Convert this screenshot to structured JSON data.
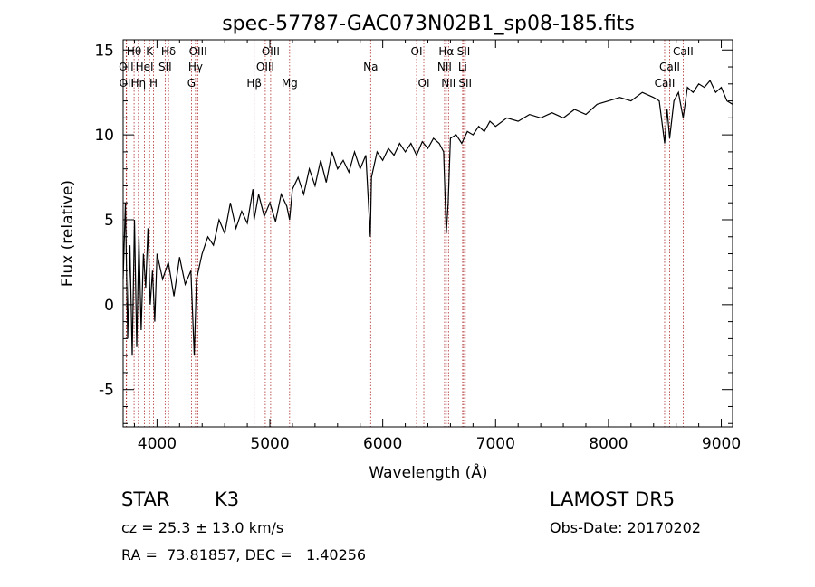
{
  "chart_data": {
    "type": "line",
    "title": "spec-57787-GAC073N02B1_sp08-185.fits",
    "xlabel": "Wavelength (Å)",
    "ylabel": "Flux (relative)",
    "xlim": [
      3700,
      9100
    ],
    "ylim": [
      -7.2,
      15.6
    ],
    "xticks": [
      4000,
      5000,
      6000,
      7000,
      8000,
      9000
    ],
    "yticks": [
      -5,
      0,
      5,
      10,
      15
    ],
    "grid": false,
    "legend": "none",
    "line_color": "#000000",
    "marker_color": "#b03030",
    "series": [
      {
        "x": [
          3700,
          3720,
          3740,
          3760,
          3780,
          3800,
          3820,
          3840,
          3860,
          3880,
          3900,
          3920,
          3940,
          3960,
          3980,
          4000,
          4050,
          4100,
          4150,
          4200,
          4250,
          4300,
          4330,
          4350,
          4400,
          4450,
          4500,
          4550,
          4600,
          4650,
          4700,
          4750,
          4800,
          4850,
          4860,
          4900,
          4950,
          5000,
          5050,
          5100,
          5150,
          5175,
          5200,
          5250,
          5300,
          5350,
          5400,
          5450,
          5500,
          5550,
          5600,
          5650,
          5700,
          5750,
          5800,
          5850,
          5890,
          5900,
          5950,
          6000,
          6050,
          6100,
          6150,
          6200,
          6250,
          6300,
          6350,
          6400,
          6450,
          6500,
          6540,
          6563,
          6580,
          6600,
          6650,
          6700,
          6750,
          6800,
          6850,
          6900,
          6950,
          7000,
          7100,
          7200,
          7300,
          7400,
          7500,
          7600,
          7700,
          7800,
          7900,
          8000,
          8100,
          8200,
          8300,
          8400,
          8450,
          8498,
          8520,
          8542,
          8580,
          8620,
          8662,
          8700,
          8750,
          8800,
          8850,
          8900,
          8950,
          9000,
          9050,
          9100
        ],
        "y": [
          1.5,
          6.0,
          -2.0,
          3.5,
          -3.0,
          5.0,
          -2.5,
          4.0,
          -1.5,
          3.0,
          1.0,
          4.5,
          0.0,
          2.0,
          -1.0,
          3.0,
          1.5,
          2.5,
          0.5,
          2.8,
          1.2,
          2.0,
          -3.0,
          1.5,
          3.0,
          4.0,
          3.5,
          5.0,
          4.2,
          6.0,
          4.5,
          5.5,
          4.8,
          6.8,
          5.0,
          6.5,
          5.2,
          6.0,
          4.9,
          6.5,
          5.8,
          5.0,
          6.8,
          7.5,
          6.5,
          8.0,
          7.0,
          8.5,
          7.2,
          9.0,
          8.0,
          8.5,
          7.8,
          9.0,
          8.0,
          8.8,
          4.0,
          7.5,
          9.0,
          8.5,
          9.2,
          8.8,
          9.5,
          9.0,
          9.5,
          8.8,
          9.6,
          9.2,
          9.8,
          9.5,
          9.0,
          4.2,
          6.0,
          9.8,
          10.0,
          9.5,
          10.2,
          10.0,
          10.5,
          10.2,
          10.8,
          10.5,
          11.0,
          10.8,
          11.2,
          11.0,
          11.3,
          11.0,
          11.5,
          11.2,
          11.8,
          12.0,
          12.2,
          12.0,
          12.5,
          12.2,
          12.0,
          9.5,
          11.5,
          9.8,
          12.0,
          12.5,
          11.0,
          12.8,
          12.5,
          13.0,
          12.8,
          13.2,
          12.5,
          12.8,
          12.0,
          11.8
        ]
      }
    ],
    "lines": [
      {
        "label": "Hθ",
        "x": 3797,
        "row": 0
      },
      {
        "label": "OII",
        "x": 3727,
        "row": 1
      },
      {
        "label": "OII",
        "x": 3730,
        "row": 2
      },
      {
        "label": "K",
        "x": 3934,
        "row": 0
      },
      {
        "label": "HeI",
        "x": 3889,
        "row": 1
      },
      {
        "label": "Hη",
        "x": 3835,
        "row": 2
      },
      {
        "label": "Hδ",
        "x": 4102,
        "row": 0
      },
      {
        "label": "SII",
        "x": 4072,
        "row": 1
      },
      {
        "label": "H",
        "x": 3969,
        "row": 2
      },
      {
        "label": "OIII",
        "x": 4363,
        "row": 0
      },
      {
        "label": "Hγ",
        "x": 4341,
        "row": 1
      },
      {
        "label": "G",
        "x": 4305,
        "row": 2
      },
      {
        "label": "OIII",
        "x": 5007,
        "row": 0
      },
      {
        "label": "OIII",
        "x": 4959,
        "row": 1
      },
      {
        "label": "Hβ",
        "x": 4861,
        "row": 2
      },
      {
        "label": "Mg",
        "x": 5175,
        "row": 2
      },
      {
        "label": "Na",
        "x": 5893,
        "row": 1
      },
      {
        "label": "OI",
        "x": 6300,
        "row": 0
      },
      {
        "label": "OI",
        "x": 6364,
        "row": 2
      },
      {
        "label": "Hα",
        "x": 6563,
        "row": 0
      },
      {
        "label": "NII",
        "x": 6548,
        "row": 1
      },
      {
        "label": "NII",
        "x": 6583,
        "row": 2
      },
      {
        "label": "SII",
        "x": 6717,
        "row": 0
      },
      {
        "label": "Li",
        "x": 6708,
        "row": 1
      },
      {
        "label": "SII",
        "x": 6731,
        "row": 2
      },
      {
        "label": "CaII",
        "x": 8662,
        "row": 0
      },
      {
        "label": "CaII",
        "x": 8542,
        "row": 1
      },
      {
        "label": "CaII",
        "x": 8498,
        "row": 2
      }
    ]
  },
  "info": {
    "object_type": "STAR",
    "subclass": "K3",
    "survey": "LAMOST DR5",
    "redshift": "cz = 25.3 ± 13.0 km/s",
    "obs_date": "Obs-Date: 20170202",
    "coords": "RA =  73.81857, DEC =   1.40256"
  }
}
